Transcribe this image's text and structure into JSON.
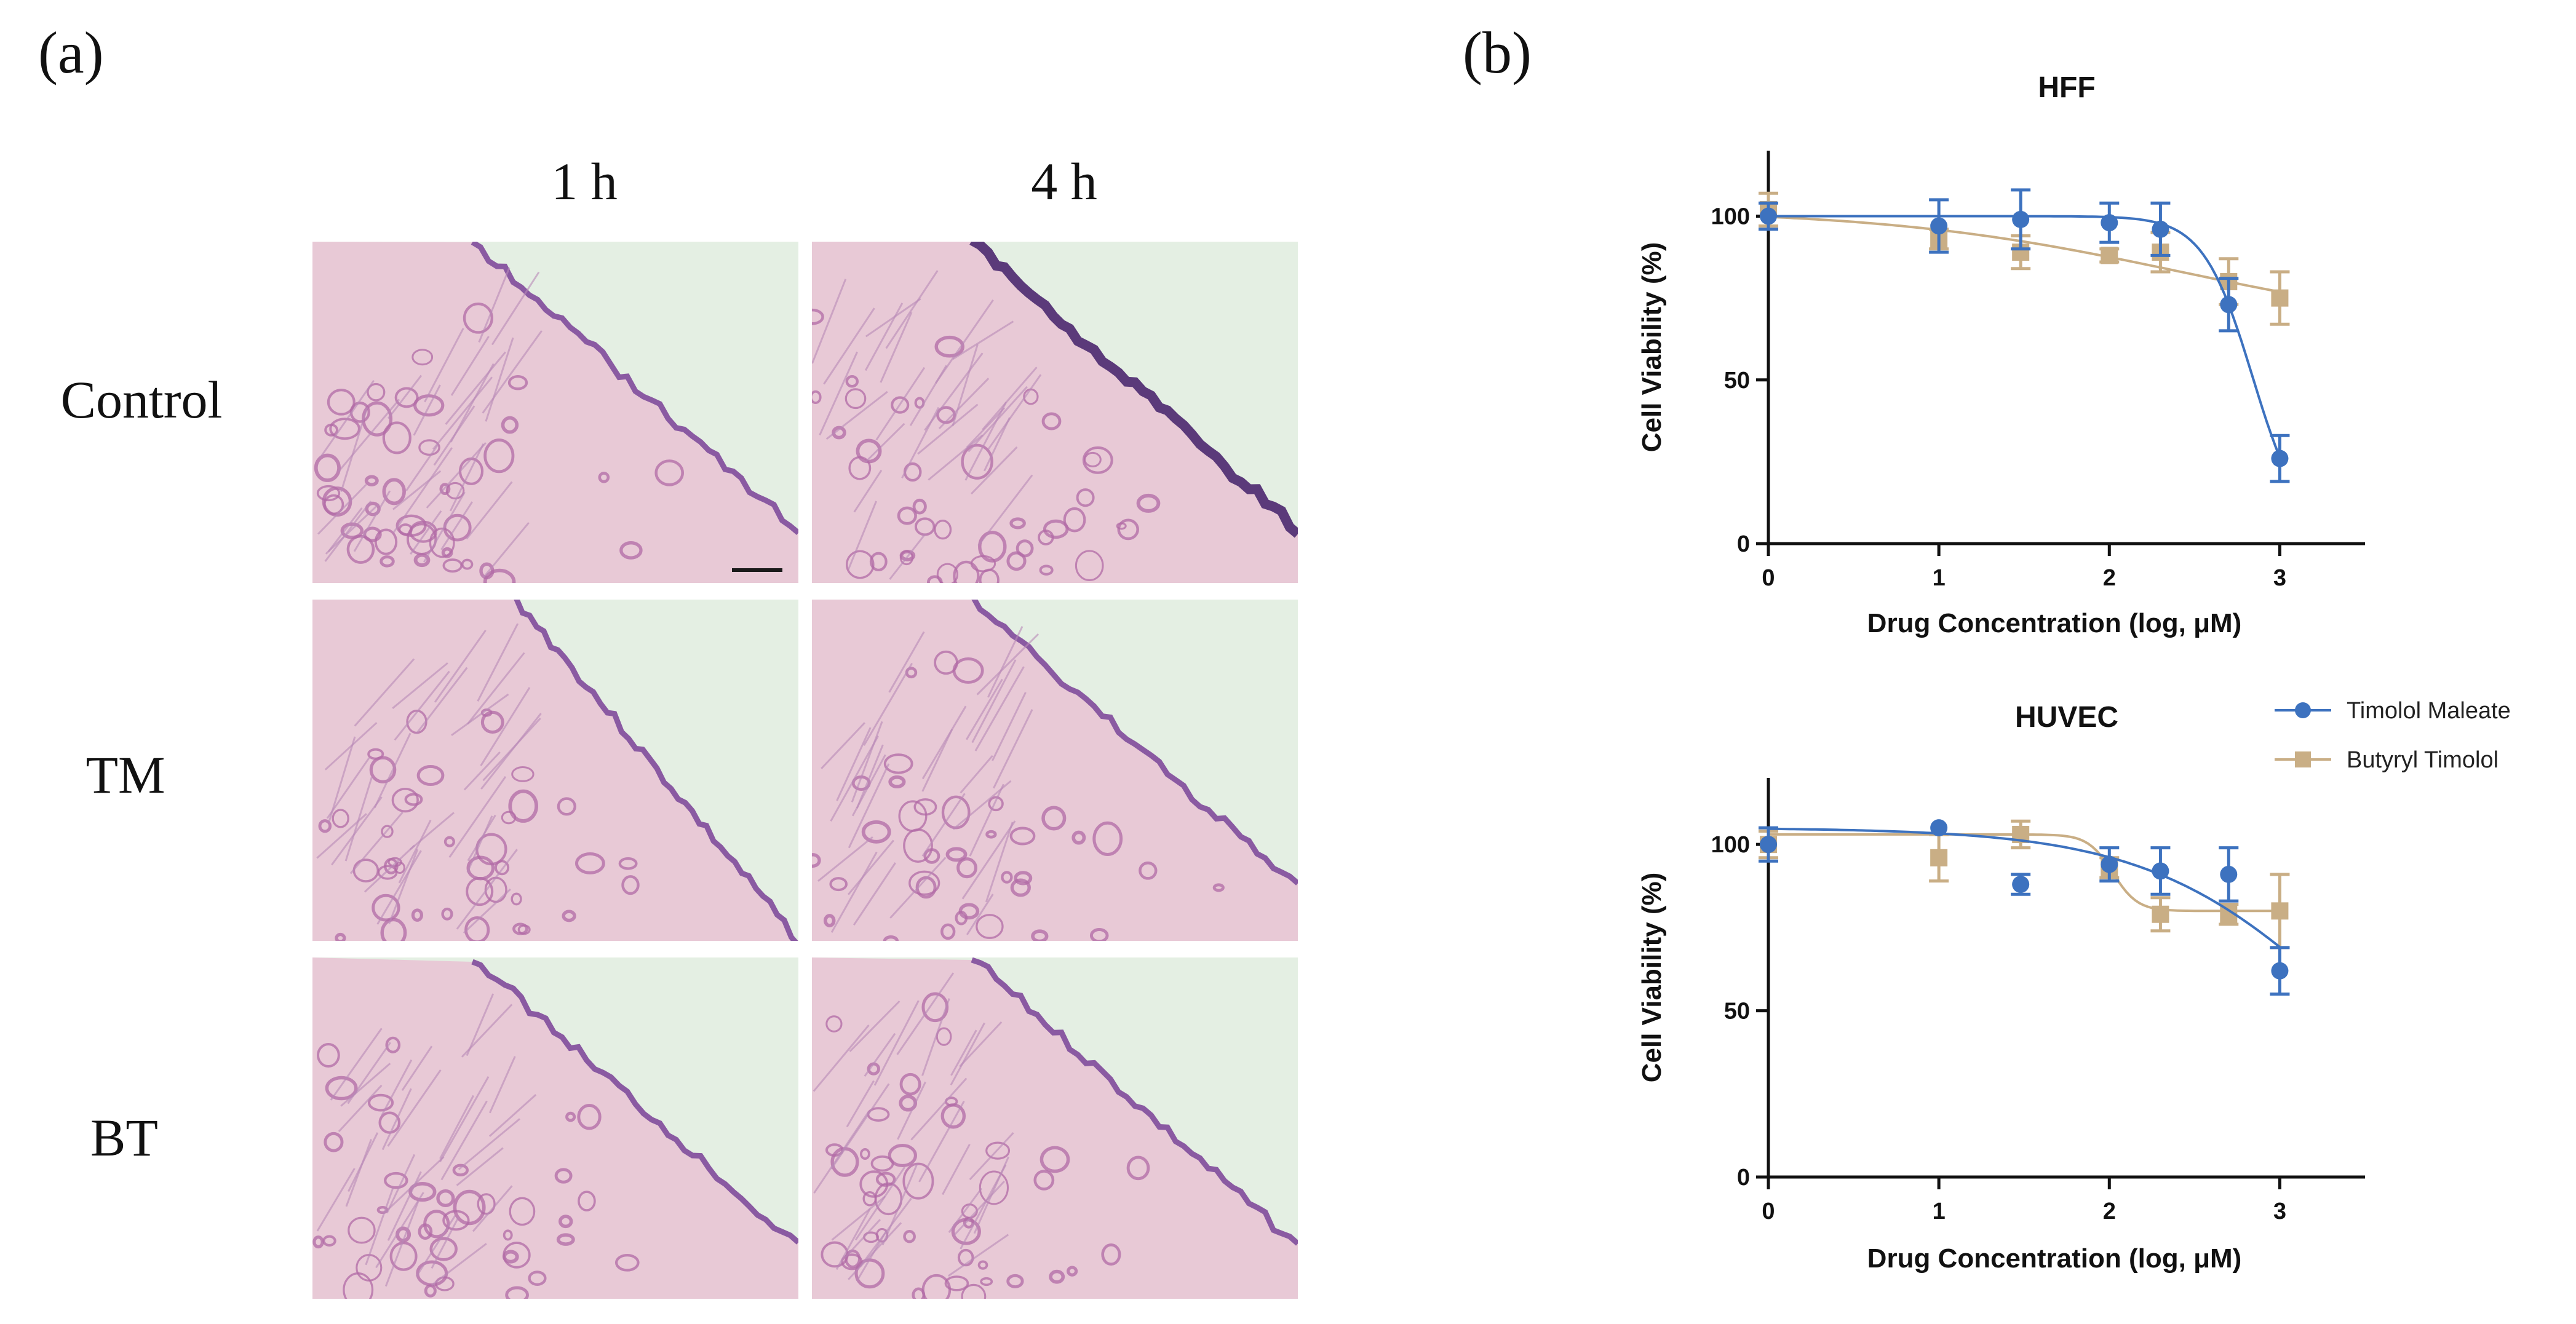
{
  "panel_a": {
    "letter": "(a)",
    "columns": [
      "1 h",
      "4 h"
    ],
    "rows": [
      "Control",
      "TM",
      "BT"
    ]
  },
  "panel_b": {
    "letter": "(b)"
  },
  "colors": {
    "timolol_maleate": "#3d72bf",
    "butyryl_timolol": "#c9ae85",
    "tissue_background": "#e4efe3",
    "tissue_stain": "#b26aa6"
  },
  "chart_data": [
    {
      "type": "scatter",
      "title": "HFF",
      "xlabel": "Drug Concentration (log, μM)",
      "ylabel": "Cell Viability (%)",
      "xlim": [
        0,
        3.5
      ],
      "ylim": [
        0,
        120
      ],
      "xticks": [
        0,
        1,
        2,
        3
      ],
      "yticks": [
        0,
        50,
        100
      ],
      "series": [
        {
          "name": "Timolol Maleate",
          "x": [
            0,
            1,
            1.48,
            2,
            2.3,
            2.7,
            3
          ],
          "y": [
            100,
            97,
            99,
            98,
            96,
            73,
            26
          ],
          "err": [
            4,
            8,
            9,
            6,
            8,
            8,
            7
          ],
          "fit": "sigmoid"
        },
        {
          "name": "Butyryl Timolol",
          "x": [
            0,
            1,
            1.48,
            2,
            2.3,
            2.7,
            3
          ],
          "y": [
            102,
            93,
            89,
            88,
            89,
            80,
            75
          ],
          "err": [
            5,
            3,
            5,
            2,
            6,
            7,
            8
          ],
          "fit": "sigmoid"
        }
      ]
    },
    {
      "type": "scatter",
      "title": "HUVEC",
      "xlabel": "Drug Concentration (log, μM)",
      "ylabel": "Cell Viability (%)",
      "xlim": [
        0,
        3.5
      ],
      "ylim": [
        0,
        120
      ],
      "xticks": [
        0,
        1,
        2,
        3
      ],
      "yticks": [
        0,
        50,
        100
      ],
      "legend": "top-right",
      "series": [
        {
          "name": "Timolol Maleate",
          "x": [
            0,
            1,
            1.48,
            2,
            2.3,
            2.7,
            3
          ],
          "y": [
            100,
            105,
            88,
            94,
            92,
            91,
            62
          ],
          "err": [
            5,
            0,
            3,
            5,
            7,
            8,
            7
          ],
          "fit": "sigmoid"
        },
        {
          "name": "Butyryl Timolol",
          "x": [
            0,
            1,
            1.48,
            2,
            2.3,
            2.7,
            3
          ],
          "y": [
            100,
            96,
            103,
            93,
            79,
            79,
            80
          ],
          "err": [
            4,
            7,
            4,
            3,
            5,
            3,
            11
          ],
          "fit": "sigmoid"
        }
      ]
    }
  ]
}
